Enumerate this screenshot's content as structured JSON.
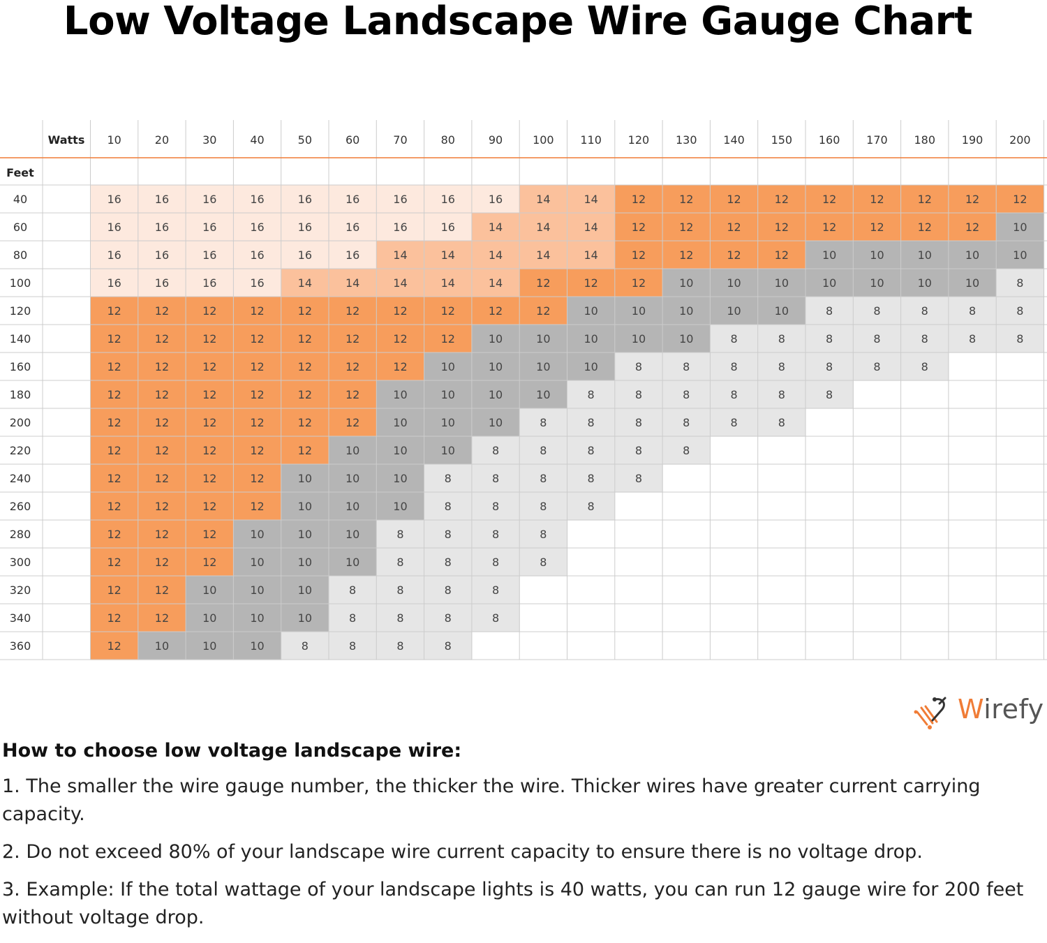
{
  "title": "Low Voltage Landscape Wire Gauge Chart",
  "colors": {
    "g16": "#fde9de",
    "g14": "#fbc19c",
    "g12": "#f79d5c",
    "g10": "#b5b5b5",
    "g8": "#e6e6e6",
    "header_line": "#f07c36",
    "grid": "#cccccc"
  },
  "chart_data": {
    "type": "table",
    "title": "Low Voltage Landscape Wire Gauge Chart",
    "column_header_label": "Watts",
    "row_header_label": "Feet",
    "watts": [
      10,
      20,
      30,
      40,
      50,
      60,
      70,
      80,
      90,
      100,
      110,
      120,
      130,
      140,
      150,
      160,
      170,
      180,
      190,
      200
    ],
    "feet": [
      40,
      60,
      80,
      100,
      120,
      140,
      160,
      180,
      200,
      220,
      240,
      260,
      280,
      300,
      320,
      340,
      360
    ],
    "gauge": [
      [
        16,
        16,
        16,
        16,
        16,
        16,
        16,
        16,
        16,
        14,
        14,
        12,
        12,
        12,
        12,
        12,
        12,
        12,
        12,
        12
      ],
      [
        16,
        16,
        16,
        16,
        16,
        16,
        16,
        16,
        14,
        14,
        14,
        12,
        12,
        12,
        12,
        12,
        12,
        12,
        12,
        10
      ],
      [
        16,
        16,
        16,
        16,
        16,
        16,
        14,
        14,
        14,
        14,
        14,
        12,
        12,
        12,
        12,
        10,
        10,
        10,
        10,
        10
      ],
      [
        16,
        16,
        16,
        16,
        14,
        14,
        14,
        14,
        14,
        12,
        12,
        12,
        10,
        10,
        10,
        10,
        10,
        10,
        10,
        8
      ],
      [
        12,
        12,
        12,
        12,
        12,
        12,
        12,
        12,
        12,
        12,
        10,
        10,
        10,
        10,
        10,
        8,
        8,
        8,
        8,
        8
      ],
      [
        12,
        12,
        12,
        12,
        12,
        12,
        12,
        12,
        10,
        10,
        10,
        10,
        10,
        8,
        8,
        8,
        8,
        8,
        8,
        8
      ],
      [
        12,
        12,
        12,
        12,
        12,
        12,
        12,
        10,
        10,
        10,
        10,
        8,
        8,
        8,
        8,
        8,
        8,
        8,
        null,
        null
      ],
      [
        12,
        12,
        12,
        12,
        12,
        12,
        10,
        10,
        10,
        10,
        8,
        8,
        8,
        8,
        8,
        8,
        null,
        null,
        null,
        null
      ],
      [
        12,
        12,
        12,
        12,
        12,
        12,
        10,
        10,
        10,
        8,
        8,
        8,
        8,
        8,
        8,
        null,
        null,
        null,
        null,
        null
      ],
      [
        12,
        12,
        12,
        12,
        12,
        10,
        10,
        10,
        8,
        8,
        8,
        8,
        8,
        null,
        null,
        null,
        null,
        null,
        null,
        null
      ],
      [
        12,
        12,
        12,
        12,
        10,
        10,
        10,
        8,
        8,
        8,
        8,
        8,
        null,
        null,
        null,
        null,
        null,
        null,
        null,
        null
      ],
      [
        12,
        12,
        12,
        12,
        10,
        10,
        10,
        8,
        8,
        8,
        8,
        null,
        null,
        null,
        null,
        null,
        null,
        null,
        null,
        null
      ],
      [
        12,
        12,
        12,
        10,
        10,
        10,
        8,
        8,
        8,
        8,
        null,
        null,
        null,
        null,
        null,
        null,
        null,
        null,
        null,
        null
      ],
      [
        12,
        12,
        12,
        10,
        10,
        10,
        8,
        8,
        8,
        8,
        null,
        null,
        null,
        null,
        null,
        null,
        null,
        null,
        null,
        null
      ],
      [
        12,
        12,
        10,
        10,
        10,
        8,
        8,
        8,
        8,
        null,
        null,
        null,
        null,
        null,
        null,
        null,
        null,
        null,
        null,
        null
      ],
      [
        12,
        12,
        10,
        10,
        10,
        8,
        8,
        8,
        8,
        null,
        null,
        null,
        null,
        null,
        null,
        null,
        null,
        null,
        null,
        null
      ],
      [
        12,
        10,
        10,
        10,
        8,
        8,
        8,
        8,
        null,
        null,
        null,
        null,
        null,
        null,
        null,
        null,
        null,
        null,
        null,
        null
      ]
    ]
  },
  "logo": {
    "first_letter": "W",
    "rest": "irefy"
  },
  "notes": {
    "heading": "How to choose low voltage landscape wire:",
    "item1": "1. The smaller the wire gauge number, the thicker the wire. Thicker wires have greater current carrying capacity.",
    "item2": "2. Do not exceed 80% of your landscape wire current capacity to ensure there is no voltage drop.",
    "item3": "3. Example: If the total wattage of your landscape lights is 40 watts, you can run 12 gauge wire for 200 feet without voltage drop."
  }
}
